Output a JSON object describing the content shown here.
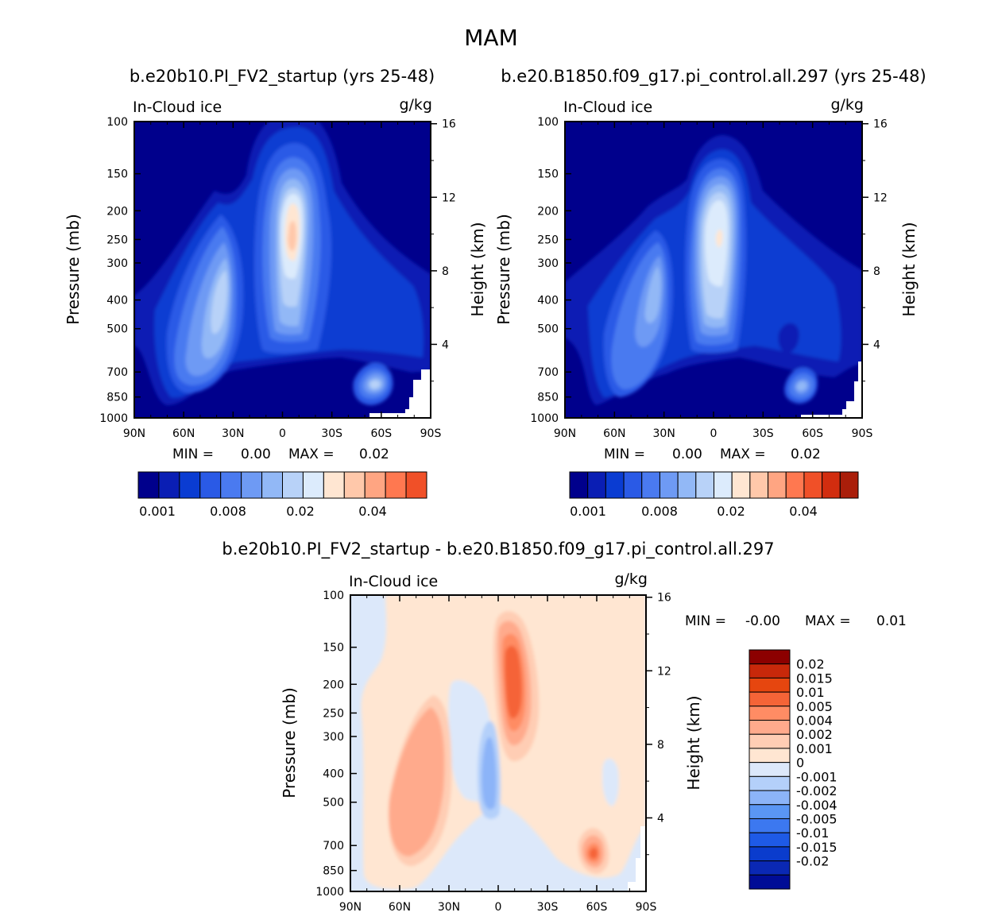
{
  "colors": {
    "seq": [
      "#00008c",
      "#0a1eb4",
      "#0a3cd2",
      "#2a5ae6",
      "#4a7af0",
      "#6e9af4",
      "#92b8f6",
      "#b8d2f8",
      "#dcebfc",
      "#ffe6d2",
      "#ffc8aa",
      "#ffa582",
      "#ff7850",
      "#f05028",
      "#d22d0f",
      "#aa1e0a",
      "#820000"
    ],
    "diff": [
      "#000c96",
      "#0a28b4",
      "#0a3ccd",
      "#1e5ae6",
      "#3c78f0",
      "#5a96f4",
      "#8cb4f8",
      "#b4d0fa",
      "#dce8fa",
      "#ffe6d2",
      "#ffcdb4",
      "#ffaa8c",
      "#ff8c64",
      "#f56437",
      "#e6460f",
      "#c8280a",
      "#8c0000"
    ]
  },
  "page": {
    "title": "MAM",
    "left_header": "b.e20b10.PI_FV2_startup (yrs 25-48)",
    "right_header": "b.e20.B1850.f09_g17.pi_control.all.297 (yrs 25-48)",
    "bottom_header": "b.e20b10.PI_FV2_startup - b.e20.B1850.f09_g17.pi_control.all.297"
  },
  "chart_data": [
    {
      "type": "heatmap",
      "id": "left",
      "variable": "In-Cloud ice",
      "units": "g/kg",
      "ylabel": "Pressure (mb)",
      "ylabel_right": "Height (km)",
      "x_ticks": [
        "90N",
        "60N",
        "30N",
        "0",
        "30S",
        "60S",
        "90S"
      ],
      "y_ticks": [
        "100",
        "150",
        "200",
        "250",
        "300",
        "400",
        "500",
        "700",
        "850",
        "1000"
      ],
      "y_ticks_right": [
        "16",
        "12",
        "8",
        "4"
      ],
      "min_label": "MIN =",
      "min_value": "0.00",
      "max_label": "MAX =",
      "max_value": "0.02",
      "colorbar_labels": [
        "0.001",
        "0.008",
        "0.02",
        "0.04"
      ],
      "colorbar_bins": 14
    },
    {
      "type": "heatmap",
      "id": "right",
      "variable": "In-Cloud ice",
      "units": "g/kg",
      "ylabel": "Pressure (mb)",
      "ylabel_right": "Height (km)",
      "x_ticks": [
        "90N",
        "60N",
        "30N",
        "0",
        "30S",
        "60S",
        "90S"
      ],
      "y_ticks": [
        "100",
        "150",
        "200",
        "250",
        "300",
        "400",
        "500",
        "700",
        "850",
        "1000"
      ],
      "y_ticks_right": [
        "16",
        "12",
        "8",
        "4"
      ],
      "min_label": "MIN =",
      "min_value": "0.00",
      "max_label": "MAX =",
      "max_value": "0.02",
      "colorbar_labels": [
        "0.001",
        "0.008",
        "0.02",
        "0.04"
      ],
      "colorbar_bins": 16
    },
    {
      "type": "heatmap",
      "id": "diff",
      "variable": "In-Cloud ice",
      "units": "g/kg",
      "ylabel": "Pressure (mb)",
      "ylabel_right": "Height (km)",
      "x_ticks": [
        "90N",
        "60N",
        "30N",
        "0",
        "30S",
        "60S",
        "90S"
      ],
      "y_ticks": [
        "100",
        "150",
        "200",
        "250",
        "300",
        "400",
        "500",
        "700",
        "850",
        "1000"
      ],
      "y_ticks_right": [
        "16",
        "12",
        "8",
        "4"
      ],
      "min_label": "MIN =",
      "min_value": "-0.00",
      "max_label": "MAX =",
      "max_value": "0.01",
      "colorbar_labels": [
        "0.02",
        "0.015",
        "0.01",
        "0.005",
        "0.004",
        "0.002",
        "0.001",
        "0",
        "-0.001",
        "-0.002",
        "-0.004",
        "-0.005",
        "-0.01",
        "-0.015",
        "-0.02"
      ]
    }
  ]
}
